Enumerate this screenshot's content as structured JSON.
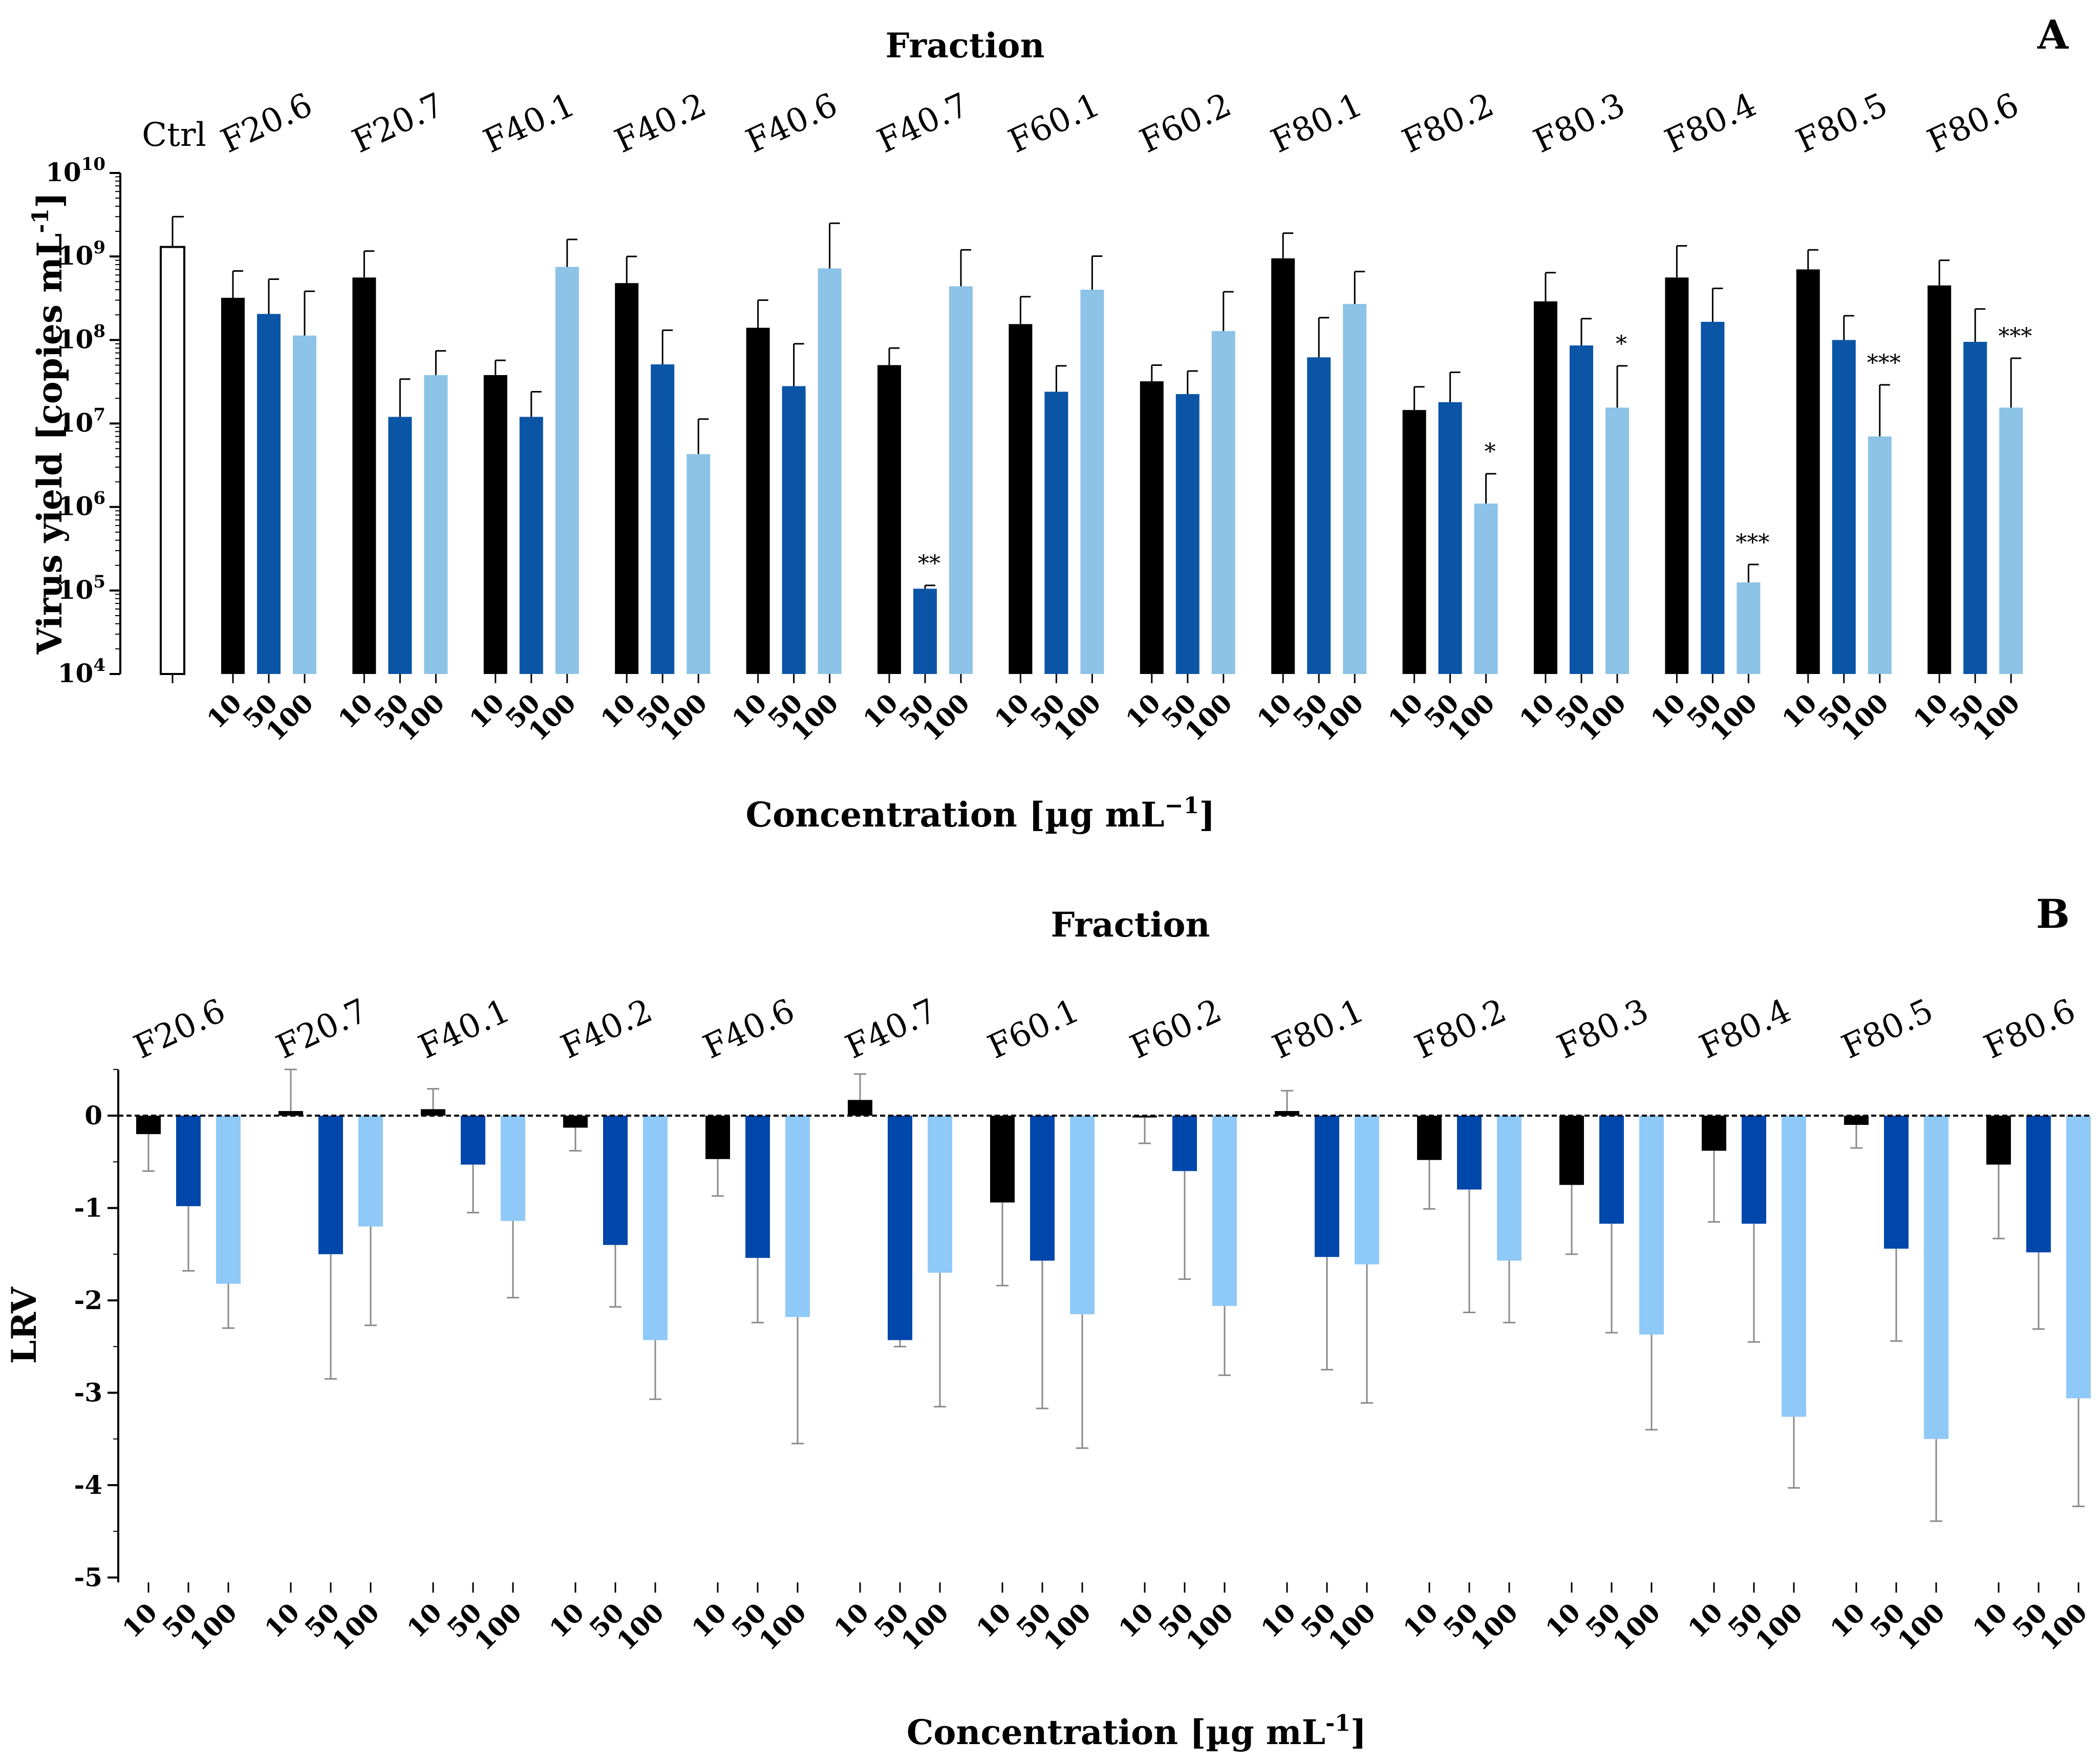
{
  "colors": {
    "c10": "#000000",
    "c50": "#0b55a6",
    "c100": "#8cc3e7",
    "c50b": "#0047ab",
    "c100b": "#8fc9f7",
    "ctrl": "#ffffff"
  },
  "chart_data": [
    {
      "panel": "A",
      "type": "bar",
      "title": "Fraction",
      "xlabel": "Concentration [µg mL",
      "xlabel_sup": "−1",
      "xlabel_end": "]",
      "ylabel": "Virus yield [copies mL",
      "ylabel_sup": "-1",
      "ylabel_end": "]",
      "yscale": "log",
      "ylim": [
        10000,
        10000000000
      ],
      "yticks": [
        {
          "base": "10",
          "exp": "4"
        },
        {
          "base": "10",
          "exp": "5"
        },
        {
          "base": "10",
          "exp": "6"
        },
        {
          "base": "10",
          "exp": "7"
        },
        {
          "base": "10",
          "exp": "8"
        },
        {
          "base": "10",
          "exp": "9"
        },
        {
          "base": "10",
          "exp": "10"
        }
      ],
      "control": {
        "label": "Ctrl",
        "value": 1300000000,
        "error": 1700000000
      },
      "categories": [
        "F20.6",
        "F20.7",
        "F40.1",
        "F40.2",
        "F40.6",
        "F40.7",
        "F60.1",
        "F60.2",
        "F80.1",
        "F80.2",
        "F80.3",
        "F80.4",
        "F80.5",
        "F80.6"
      ],
      "concentrations": [
        "10",
        "50",
        "100"
      ],
      "series": [
        {
          "name": "10",
          "values": [
            320000000,
            560000000,
            38000000,
            480000000,
            140000000,
            50000000,
            155000000,
            32000000,
            950000000,
            14500000,
            290000000,
            560000000,
            700000000,
            450000000
          ],
          "errors": [
            350000000,
            600000000,
            19000000,
            520000000,
            160000000,
            30000000,
            175000000,
            18000000,
            950000000,
            13000000,
            350000000,
            780000000,
            500000000,
            450000000
          ]
        },
        {
          "name": "50",
          "values": [
            205000000,
            12000000,
            12000000,
            51000000,
            28000000,
            105000,
            24000000,
            22500000,
            62000000,
            18000000,
            86000000,
            165000000,
            100000000,
            95000000
          ],
          "errors": [
            330000000,
            22000000,
            12000000,
            80000000,
            62000000,
            10000,
            25000000,
            20000000,
            123000000,
            23000000,
            94000000,
            250000000,
            95000000,
            140000000
          ]
        },
        {
          "name": "100",
          "values": [
            113000000,
            38000000,
            750000000,
            4300000,
            720000000,
            440000000,
            400000000,
            128000000,
            270000000,
            1100000,
            15500000,
            125000,
            7000000,
            15500000
          ],
          "errors": [
            270000000,
            36000000,
            850000000,
            7000000,
            1780000000,
            760000000,
            610000000,
            250000000,
            390000000,
            1400000,
            33500000,
            80000,
            22000000,
            45000000
          ]
        }
      ],
      "annotations": [
        {
          "group": "F40.7",
          "series": "50",
          "text": "**"
        },
        {
          "group": "F80.2",
          "series": "100",
          "text": "*"
        },
        {
          "group": "F80.3",
          "series": "100",
          "text": "*"
        },
        {
          "group": "F80.4",
          "series": "100",
          "text": "***"
        },
        {
          "group": "F80.5",
          "series": "100",
          "text": "***"
        },
        {
          "group": "F80.6",
          "series": "100",
          "text": "***"
        }
      ]
    },
    {
      "panel": "B",
      "type": "bar",
      "title": "Fraction",
      "xlabel": "Concentration [µg mL",
      "xlabel_sup": "-1",
      "xlabel_end": "]",
      "ylabel": "LRV",
      "ylim": [
        -5,
        0.5
      ],
      "yticks": [
        "0",
        "-1",
        "-2",
        "-3",
        "-4",
        "-5"
      ],
      "categories": [
        "F20.6",
        "F20.7",
        "F40.1",
        "F40.2",
        "F40.6",
        "F40.7",
        "F60.1",
        "F60.2",
        "F80.1",
        "F80.2",
        "F80.3",
        "F80.4",
        "F80.5",
        "F80.6"
      ],
      "concentrations": [
        "10",
        "50",
        "100"
      ],
      "series": [
        {
          "name": "10",
          "values": [
            -0.2,
            0.05,
            0.07,
            -0.13,
            -0.47,
            0.17,
            -0.94,
            -0.02,
            0.05,
            -0.48,
            -0.75,
            -0.38,
            -0.1,
            -0.53
          ],
          "errors": [
            0.4,
            0.45,
            0.22,
            0.25,
            0.4,
            0.28,
            0.9,
            0.28,
            0.22,
            0.53,
            0.75,
            0.77,
            0.25,
            0.8
          ]
        },
        {
          "name": "50",
          "values": [
            -0.98,
            -1.5,
            -0.53,
            -1.4,
            -1.54,
            -2.43,
            -1.57,
            -0.6,
            -1.53,
            -0.8,
            -1.17,
            -1.17,
            -1.44,
            -1.48
          ],
          "errors": [
            0.7,
            1.35,
            0.52,
            0.67,
            0.7,
            0.07,
            1.6,
            1.17,
            1.22,
            1.33,
            1.18,
            1.28,
            1.0,
            0.83
          ]
        },
        {
          "name": "100",
          "values": [
            -1.82,
            -1.2,
            -1.14,
            -2.43,
            -2.18,
            -1.7,
            -2.15,
            -2.06,
            -1.61,
            -1.57,
            -2.37,
            -3.26,
            -3.5,
            -3.06
          ],
          "errors": [
            0.48,
            1.07,
            0.83,
            0.64,
            1.37,
            1.45,
            1.45,
            0.75,
            1.5,
            0.67,
            1.03,
            0.77,
            0.89,
            1.17
          ]
        }
      ]
    }
  ]
}
